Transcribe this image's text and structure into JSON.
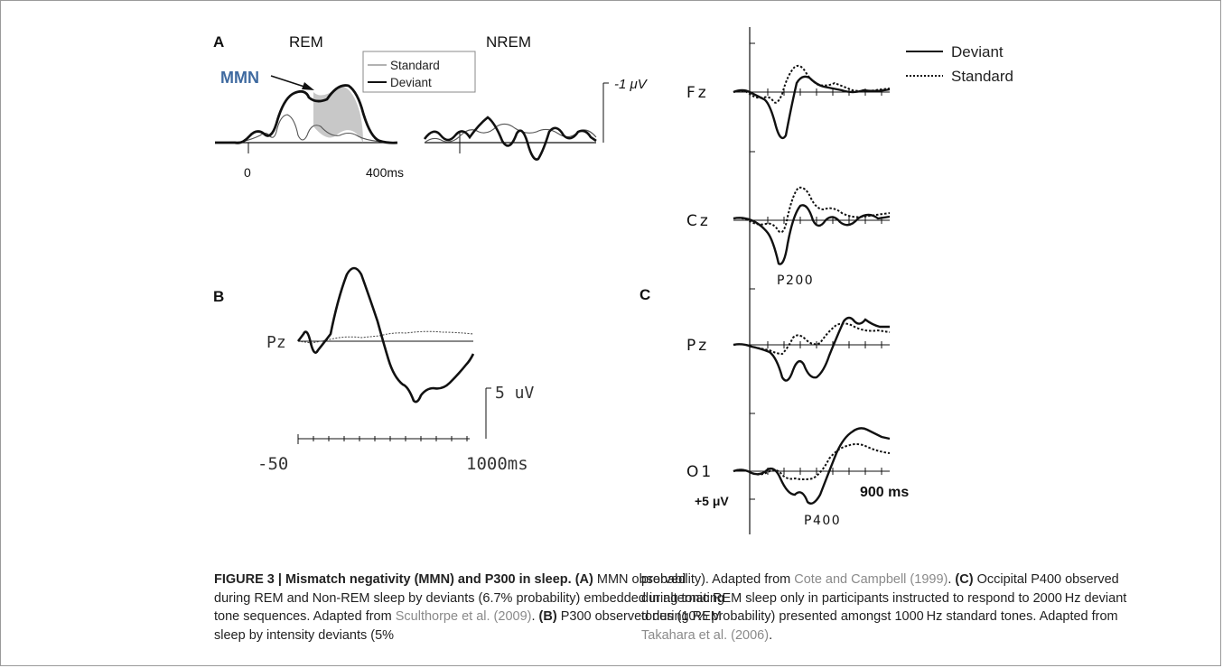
{
  "panelA": {
    "label": "A",
    "rem_title": "REM",
    "nrem_title": "NREM",
    "mmn_label": "MMN",
    "legend": [
      "Standard",
      "Deviant"
    ],
    "scale": "-1 μV",
    "tick_start": "0",
    "tick_end": "400ms"
  },
  "panelB": {
    "label": "B",
    "channel": "Pz",
    "scale": "5 uV",
    "tick_start": "-50",
    "tick_end": "1000ms"
  },
  "panelC": {
    "label": "C",
    "legend": [
      "Deviant",
      "Standard"
    ],
    "channels": [
      "Fz",
      "Cz",
      "Pz",
      "O1"
    ],
    "p200": "P200",
    "p400": "P400",
    "time_label": "900 ms",
    "amp_label": "+5 μV"
  },
  "colors": {
    "mmn": "#3f6aa0",
    "shade": "#c8c8c8",
    "ink": "#111111",
    "ref": "#8a8a8a"
  },
  "caption": {
    "fig": "FIGURE 3 | Mismatch negativity (MMN) and P300 in sleep.",
    "a_tag": "(A)",
    "a1": "MMN observed during REM and Non-REM sleep by deviants (6.7% probability) embedded in alternating tone sequences. Adapted from",
    "ref1": "Sculthorpe et al. (2009)",
    "b_tag": "(B)",
    "b1": "P300 observed during REM sleep by intensity deviants (5% probability). Adapted from",
    "ref2": "Cote and Campbell (1999)",
    "c_tag": "(C)",
    "c1": "Occipital P400 observed during tonic REM sleep only in participants instructed to respond to 2000 Hz deviant tones (10% probability) presented amongst 1000 Hz standard tones. Adapted from",
    "ref3": "Takahara et al. (2006)"
  }
}
